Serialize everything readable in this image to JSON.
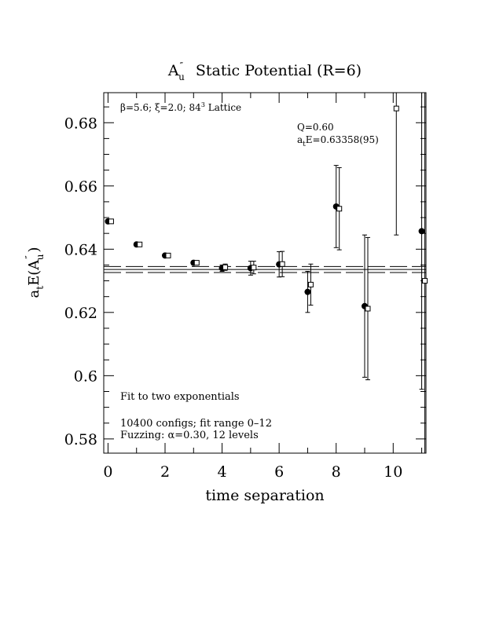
{
  "chart_data": {
    "type": "scatter",
    "title": {
      "main": "A",
      "sup": "″",
      "sub": "u",
      "rest": "Static Potential (R=6)"
    },
    "xlabel": "time separation",
    "ylabel": {
      "pre": "a",
      "pre_sub": "t",
      "mid": "E(A",
      "sup": "″",
      "sub": "u",
      "post": ")"
    },
    "xlim": [
      -0.15,
      11.15
    ],
    "ylim": [
      0.5755,
      0.6895
    ],
    "xticks": [
      0,
      2,
      4,
      6,
      8,
      10
    ],
    "xtick_labels": [
      "0",
      "2",
      "4",
      "6",
      "8",
      "10"
    ],
    "yticks": [
      0.58,
      0.6,
      0.62,
      0.64,
      0.66,
      0.68
    ],
    "ytick_labels": [
      "0.58",
      "0.6",
      "0.62",
      "0.64",
      "0.66",
      "0.68"
    ],
    "annotations": {
      "lattice": {
        "beta": "β",
        "rest": "=5.6; ",
        "xi": "ξ",
        "rest2": "=2.0; 84",
        "sup": "3",
        "rest3": " Lattice"
      },
      "q": "Q=0.60",
      "fit_result": {
        "pre": "a",
        "sub": "t",
        "rest": "E=0.63358(95)"
      },
      "fit_type": "Fit to two exponentials",
      "configs": "10400 configs; fit range 0–12",
      "fuzzing": {
        "pre": "Fuzzing: ",
        "alpha": "α",
        "rest": "=0.30, 12 levels"
      }
    },
    "fit": {
      "value": 0.63358,
      "error": 0.00095,
      "x_range": [
        -0.15,
        11.15
      ]
    },
    "series": [
      {
        "marker": "filled-circle",
        "points": [
          {
            "x": 0,
            "y": 0.6488,
            "err": 0.0003
          },
          {
            "x": 1,
            "y": 0.6415,
            "err": 0.0004
          },
          {
            "x": 2,
            "y": 0.638,
            "err": 0.0004
          },
          {
            "x": 3,
            "y": 0.6357,
            "err": 0.0005
          },
          {
            "x": 4,
            "y": 0.634,
            "err": 0.001
          },
          {
            "x": 5,
            "y": 0.634,
            "err": 0.0022
          },
          {
            "x": 6,
            "y": 0.6352,
            "err": 0.004
          },
          {
            "x": 7,
            "y": 0.6265,
            "err": 0.0065
          },
          {
            "x": 8,
            "y": 0.6535,
            "err": 0.013
          },
          {
            "x": 9,
            "y": 0.622,
            "err": 0.0225
          },
          {
            "x": 11,
            "y": 0.6457,
            "err": 0.05
          }
        ]
      },
      {
        "marker": "open-square",
        "points": [
          {
            "x": 0,
            "y": 0.6488,
            "err": 0.0003
          },
          {
            "x": 1,
            "y": 0.6415,
            "err": 0.0004
          },
          {
            "x": 2,
            "y": 0.638,
            "err": 0.0004
          },
          {
            "x": 3,
            "y": 0.6357,
            "err": 0.0005
          },
          {
            "x": 4,
            "y": 0.6343,
            "err": 0.001
          },
          {
            "x": 5,
            "y": 0.6342,
            "err": 0.002
          },
          {
            "x": 6,
            "y": 0.6353,
            "err": 0.004
          },
          {
            "x": 7,
            "y": 0.6288,
            "err": 0.0065
          },
          {
            "x": 8,
            "y": 0.6528,
            "err": 0.013
          },
          {
            "x": 9,
            "y": 0.6212,
            "err": 0.0225
          },
          {
            "x": 10,
            "y": 0.6845,
            "err": 0.04
          },
          {
            "x": 11,
            "y": 0.63,
            "err": 0.06
          }
        ]
      }
    ]
  }
}
